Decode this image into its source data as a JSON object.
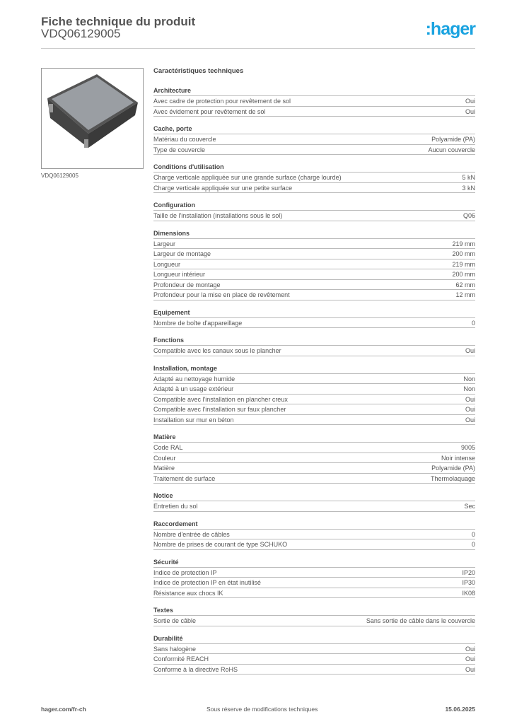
{
  "header": {
    "title": "Fiche technique du produit",
    "code": "VDQ06129005",
    "logo": ":hager"
  },
  "image": {
    "caption": "VDQ06129005"
  },
  "main_title": "Caractéristiques techniques",
  "sections": [
    {
      "title": "Architecture",
      "rows": [
        [
          "Avec cadre de protection pour revêtement de sol",
          "Oui"
        ],
        [
          "Avec évidement pour revêtement de sol",
          "Oui"
        ]
      ]
    },
    {
      "title": "Cache, porte",
      "rows": [
        [
          "Matériau du couvercle",
          "Polyamide (PA)"
        ],
        [
          "Type de couvercle",
          "Aucun couvercle"
        ]
      ]
    },
    {
      "title": "Conditions d'utilisation",
      "rows": [
        [
          "Charge verticale appliquée sur une grande surface (charge lourde)",
          "5 kN"
        ],
        [
          "Charge verticale appliquée sur une petite surface",
          "3 kN"
        ]
      ]
    },
    {
      "title": "Configuration",
      "rows": [
        [
          "Taille de l'installation (installations sous le sol)",
          "Q06"
        ]
      ]
    },
    {
      "title": "Dimensions",
      "rows": [
        [
          "Largeur",
          "219 mm"
        ],
        [
          "Largeur de montage",
          "200 mm"
        ],
        [
          "Longueur",
          "219 mm"
        ],
        [
          "Longueur intérieur",
          "200 mm"
        ],
        [
          "Profondeur de montage",
          "62 mm"
        ],
        [
          "Profondeur pour la mise en place de revêtement",
          "12 mm"
        ]
      ]
    },
    {
      "title": "Equipement",
      "rows": [
        [
          "Nombre de boîte d'appareillage",
          "0"
        ]
      ]
    },
    {
      "title": "Fonctions",
      "rows": [
        [
          "Compatible avec les canaux sous le plancher",
          "Oui"
        ]
      ]
    },
    {
      "title": "Installation, montage",
      "rows": [
        [
          "Adapté au nettoyage humide",
          "Non"
        ],
        [
          "Adapté à un usage extérieur",
          "Non"
        ],
        [
          "Compatible avec l'installation en plancher creux",
          "Oui"
        ],
        [
          "Compatible avec l'installation sur faux plancher",
          "Oui"
        ],
        [
          "Installation sur mur en béton",
          "Oui"
        ]
      ]
    },
    {
      "title": "Matière",
      "rows": [
        [
          "Code RAL",
          "9005"
        ],
        [
          "Couleur",
          "Noir intense"
        ],
        [
          "Matière",
          "Polyamide (PA)"
        ],
        [
          "Traitement de surface",
          "Thermolaquage"
        ]
      ]
    },
    {
      "title": "Notice",
      "rows": [
        [
          "Entretien du sol",
          "Sec"
        ]
      ]
    },
    {
      "title": "Raccordement",
      "rows": [
        [
          "Nombre d'entrée de câbles",
          "0"
        ],
        [
          "Nombre de prises de courant de type SCHUKO",
          "0"
        ]
      ]
    },
    {
      "title": "Sécurité",
      "rows": [
        [
          "Indice de protection IP",
          "IP20"
        ],
        [
          "Indice de protection IP en état inutilisé",
          "IP30"
        ],
        [
          "Résistance aux chocs IK",
          "IK08"
        ]
      ]
    },
    {
      "title": "Textes",
      "rows": [
        [
          "Sortie de câble",
          "Sans sortie de câble dans le couvercle"
        ]
      ]
    },
    {
      "title": "Durabilité",
      "rows": [
        [
          "Sans halogène",
          "Oui"
        ],
        [
          "Conformité REACH",
          "Oui"
        ],
        [
          "Conforme à la directive RoHS",
          "Oui"
        ]
      ]
    }
  ],
  "footer": {
    "left": "hager.com/fr-ch",
    "center": "Sous réserve de modifications techniques",
    "right": "15.06.2025"
  }
}
